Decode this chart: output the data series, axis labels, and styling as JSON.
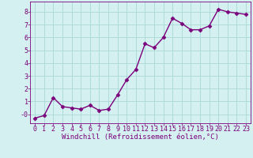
{
  "x": [
    0,
    1,
    2,
    3,
    4,
    5,
    6,
    7,
    8,
    9,
    10,
    11,
    12,
    13,
    14,
    15,
    16,
    17,
    18,
    19,
    20,
    21,
    22,
    23
  ],
  "y": [
    -0.3,
    -0.1,
    1.3,
    0.6,
    0.5,
    0.4,
    0.7,
    0.3,
    0.4,
    1.5,
    2.7,
    3.5,
    5.5,
    5.2,
    6.0,
    7.5,
    7.1,
    6.6,
    6.6,
    6.9,
    8.2,
    8.0,
    7.9,
    7.8
  ],
  "line_color": "#7B007B",
  "marker": "D",
  "marker_size": 2.5,
  "line_width": 1.0,
  "bg_color": "#d4f0f0",
  "grid_color": "#a8d8d8",
  "xlabel": "Windchill (Refroidissement éolien,°C)",
  "xlabel_color": "#7B007B",
  "ylabel_ticks": [
    0,
    1,
    2,
    3,
    4,
    5,
    6,
    7,
    8
  ],
  "ytick_labels": [
    "-0",
    "1",
    "2",
    "3",
    "4",
    "5",
    "6",
    "7",
    "8"
  ],
  "xtick_labels": [
    "0",
    "1",
    "2",
    "3",
    "4",
    "5",
    "6",
    "7",
    "8",
    "9",
    "10",
    "11",
    "12",
    "13",
    "14",
    "15",
    "16",
    "17",
    "18",
    "19",
    "20",
    "21",
    "22",
    "23"
  ],
  "ylim": [
    -0.7,
    8.8
  ],
  "xlim": [
    -0.5,
    23.5
  ],
  "tick_color": "#7B007B",
  "label_fontsize": 6.5,
  "tick_fontsize": 6.0
}
